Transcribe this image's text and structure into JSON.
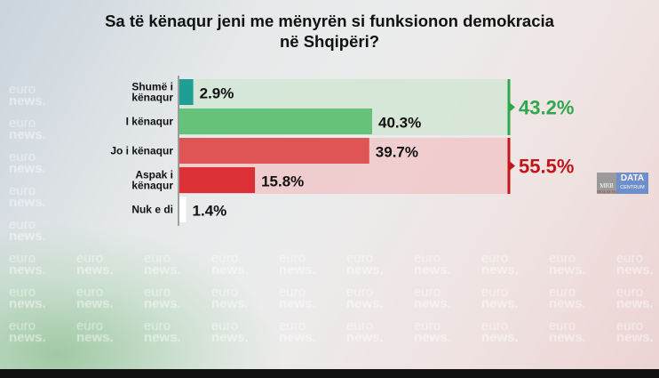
{
  "title": "Sa të kënaqur jeni me mënyrën si funksionon demokracia në Shqipëri?",
  "watermark": {
    "line1": "euro",
    "line2": "news."
  },
  "logo": {
    "mrb": "MRB",
    "mrb_sub": "HELLAS SA",
    "data": "DATA",
    "centrum": "CENTRUM"
  },
  "chart_data": {
    "type": "bar",
    "orientation": "horizontal",
    "title": "Sa të kënaqur jeni me mënyrën si funksionon demokracia në Shqipëri?",
    "categories": [
      "Shumë i kënaqur",
      "I kënaqur",
      "Jo i kënaqur",
      "Aspak i kënaqur",
      "Nuk e di"
    ],
    "category_lines": [
      [
        "Shumë i",
        "kënaqur"
      ],
      [
        "I kënaqur"
      ],
      [
        "Jo i kënaqur"
      ],
      [
        "Aspak i",
        "kënaqur"
      ],
      [
        "Nuk e di"
      ]
    ],
    "values": [
      2.9,
      40.3,
      39.7,
      15.8,
      1.4
    ],
    "labels": [
      "2.9%",
      "40.3%",
      "39.7%",
      "15.8%",
      "1.4%"
    ],
    "colors": [
      "#1f9e93",
      "#66c17a",
      "#df5556",
      "#db3036",
      "#ffffff"
    ],
    "groups": [
      {
        "label": "43.2%",
        "value": 43.2,
        "members": [
          0,
          1
        ],
        "color": "#2ea84b",
        "band": "#cfe6d2"
      },
      {
        "label": "55.5%",
        "value": 55.5,
        "members": [
          2,
          3
        ],
        "color": "#c3141c",
        "band": "#f0c3c4"
      }
    ],
    "unit": "%",
    "grid": false
  }
}
